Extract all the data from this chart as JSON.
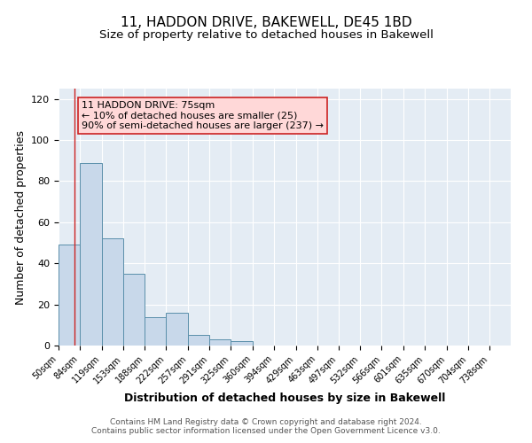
{
  "title": "11, HADDON DRIVE, BAKEWELL, DE45 1BD",
  "subtitle": "Size of property relative to detached houses in Bakewell",
  "xlabel": "Distribution of detached houses by size in Bakewell",
  "ylabel": "Number of detached properties",
  "bin_edges": [
    50,
    84,
    119,
    153,
    188,
    222,
    257,
    291,
    325,
    360,
    394,
    429,
    463,
    497,
    532,
    566,
    601,
    635,
    670,
    704,
    738,
    772
  ],
  "bar_heights": [
    49,
    89,
    52,
    35,
    14,
    16,
    5,
    3,
    2,
    0,
    0,
    0,
    0,
    0,
    0,
    0,
    0,
    0,
    0,
    0,
    0
  ],
  "tick_labels": [
    "50sqm",
    "84sqm",
    "119sqm",
    "153sqm",
    "188sqm",
    "222sqm",
    "257sqm",
    "291sqm",
    "325sqm",
    "360sqm",
    "394sqm",
    "429sqm",
    "463sqm",
    "497sqm",
    "532sqm",
    "566sqm",
    "601sqm",
    "635sqm",
    "670sqm",
    "704sqm",
    "738sqm"
  ],
  "tick_positions": [
    50,
    84,
    119,
    153,
    188,
    222,
    257,
    291,
    325,
    360,
    394,
    429,
    463,
    497,
    532,
    566,
    601,
    635,
    670,
    704,
    738
  ],
  "ylim": [
    0,
    125
  ],
  "yticks": [
    0,
    20,
    40,
    60,
    80,
    100,
    120
  ],
  "bar_color": "#c8d8ea",
  "bar_edge_color": "#5a8faa",
  "background_color": "#e4ecf4",
  "grid_color": "#ffffff",
  "annotation_box_facecolor": "#ffd8d8",
  "annotation_box_edge": "#cc2222",
  "annotation_line_color": "#cc2222",
  "annotation_text_line1": "11 HADDON DRIVE: 75sqm",
  "annotation_text_line2": "← 10% of detached houses are smaller (25)",
  "annotation_text_line3": "90% of semi-detached houses are larger (237) →",
  "property_line_x": 75,
  "footer_line1": "Contains HM Land Registry data © Crown copyright and database right 2024.",
  "footer_line2": "Contains public sector information licensed under the Open Government Licence v3.0.",
  "title_fontsize": 11,
  "subtitle_fontsize": 9.5,
  "axis_label_fontsize": 9,
  "tick_fontsize": 7,
  "annotation_fontsize": 8,
  "footer_fontsize": 6.5
}
